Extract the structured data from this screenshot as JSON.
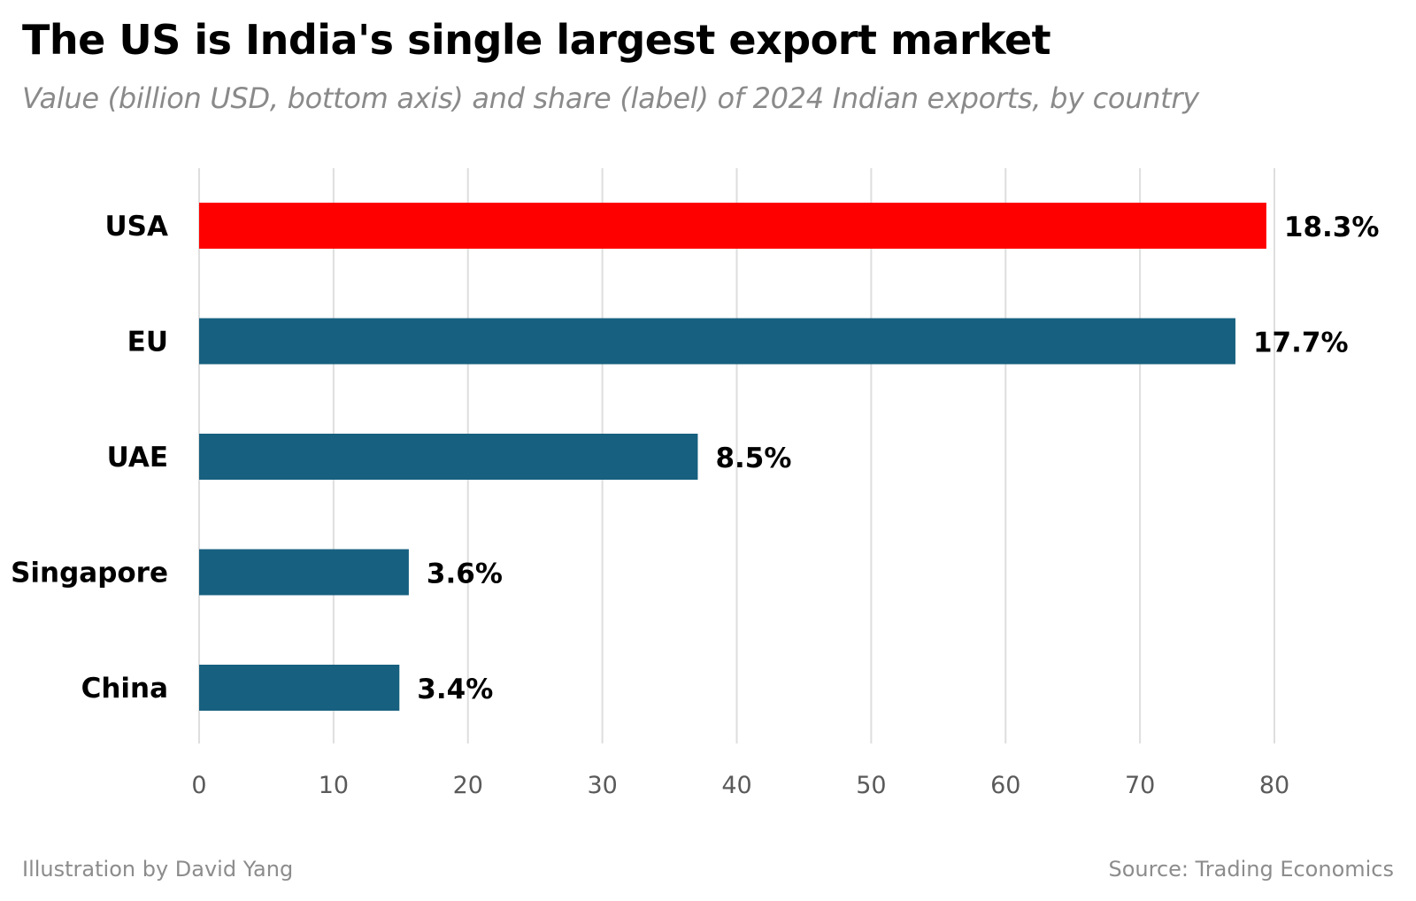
{
  "chart_data": {
    "type": "bar",
    "orientation": "horizontal",
    "title": "The US is India's single largest export market",
    "subtitle": "Value (billion USD, bottom axis) and share (label) of 2024 Indian exports, by country",
    "categories": [
      "USA",
      "EU",
      "UAE",
      "Singapore",
      "China"
    ],
    "values": [
      79.4,
      77.1,
      37.1,
      15.6,
      14.9
    ],
    "labels": [
      "18.3%",
      "17.7%",
      "8.5%",
      "3.6%",
      "3.4%"
    ],
    "colors": [
      "#ff0000",
      "#17607f",
      "#17607f",
      "#17607f",
      "#17607f"
    ],
    "xlim": [
      0,
      80
    ],
    "xticks": [
      0,
      10,
      20,
      30,
      40,
      50,
      60,
      70,
      80
    ],
    "xlabel": "",
    "ylabel": "",
    "grid": true
  },
  "footer": {
    "credit": "Illustration by David Yang",
    "source": "Source: Trading Economics"
  },
  "colors": {
    "highlight": "#ff0000",
    "bar": "#17607f",
    "grid": "#dedede",
    "muted_text": "#8a8a8a"
  }
}
